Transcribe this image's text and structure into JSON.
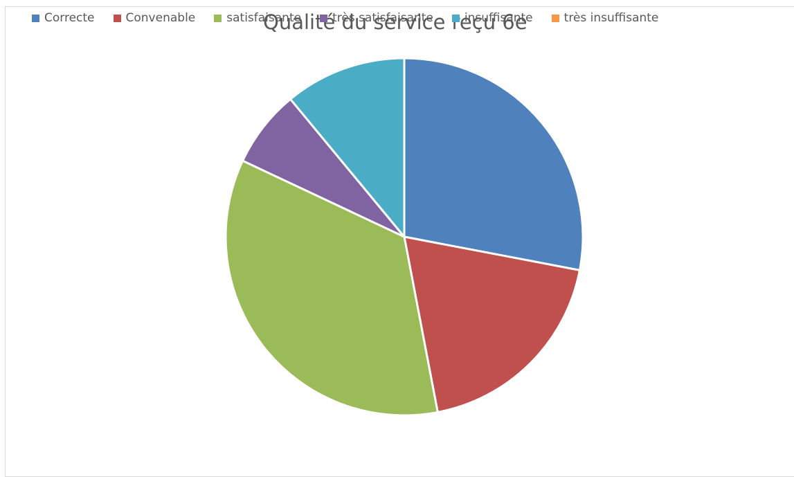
{
  "chart_data": {
    "type": "pie",
    "title": "Qualité du service reçu 6e",
    "legend_position": "top",
    "categories": [
      "Correcte",
      "Convenable",
      "satisfaisante",
      "très satisfaisante",
      "insuffisante",
      "très insuffisante"
    ],
    "values": [
      28,
      19,
      35,
      7,
      11,
      0
    ],
    "colors": [
      "#4f81bd",
      "#c0504d",
      "#9bbb59",
      "#8064a2",
      "#4bacc6",
      "#f79646"
    ]
  }
}
